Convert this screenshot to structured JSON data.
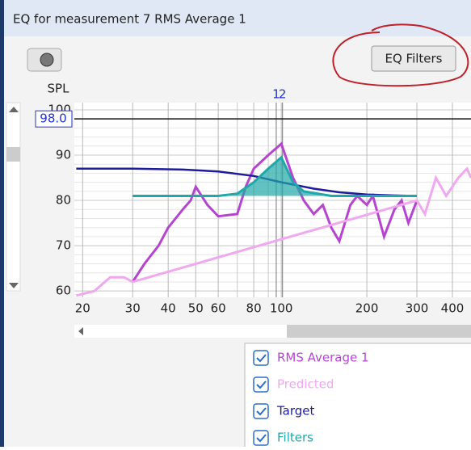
{
  "window": {
    "title": "EQ for measurement 7 RMS Average 1"
  },
  "toolbar": {
    "button": "EQ Filters"
  },
  "chart_data": {
    "type": "line",
    "y_label": "SPL",
    "log_x": true,
    "grid": true,
    "xlim": [
      18.7,
      465
    ],
    "ylim": [
      58.6,
      101.6
    ],
    "xticks": [
      20,
      30,
      40,
      50,
      60,
      80,
      100,
      200,
      300,
      400
    ],
    "x_minor_gridlines": [
      70,
      90
    ],
    "yticks": [
      60,
      70,
      80,
      90,
      100
    ],
    "target_level": {
      "value": 98,
      "label": "98.0"
    },
    "filter_numbers": [
      1,
      2
    ],
    "filter_centers": [
      96,
      101
    ],
    "series": [
      {
        "name": "RMS Average 1",
        "color": "#b545d0",
        "x": [
          30,
          33,
          37,
          40,
          45,
          48,
          50,
          55,
          60,
          70,
          75,
          80,
          90,
          100,
          110,
          120,
          130,
          140,
          150,
          160,
          175,
          185,
          200,
          210,
          230,
          250,
          265,
          280,
          300
        ],
        "values": [
          62,
          66,
          70,
          74,
          78,
          80,
          83,
          79,
          76.5,
          77,
          83,
          87,
          90,
          92.5,
          85,
          80,
          77,
          79,
          74,
          71,
          79,
          81,
          79,
          81,
          72,
          78,
          80,
          75,
          80
        ]
      },
      {
        "name": "Predicted",
        "color": "#f0a8f0",
        "x": [
          19,
          22,
          25,
          28,
          30,
          300,
          320,
          350,
          380,
          420,
          450,
          465
        ],
        "values": [
          59,
          60,
          63,
          63,
          62,
          80,
          77,
          85,
          81,
          85,
          87,
          85
        ]
      },
      {
        "name": "Target",
        "color": "#1c1c9c",
        "x": [
          19,
          30,
          45,
          60,
          80,
          100,
          130,
          160,
          200,
          250,
          300
        ],
        "values": [
          87,
          87,
          86.8,
          86.4,
          85.4,
          84,
          82.6,
          81.8,
          81.3,
          81.1,
          81
        ]
      },
      {
        "name": "Filters",
        "color": "#20a8a8",
        "x": [
          30,
          60,
          70,
          80,
          90,
          100,
          110,
          120,
          150,
          300
        ],
        "values": [
          81,
          81,
          81.5,
          84,
          87,
          89.5,
          84,
          82,
          81,
          81
        ]
      }
    ]
  }
}
